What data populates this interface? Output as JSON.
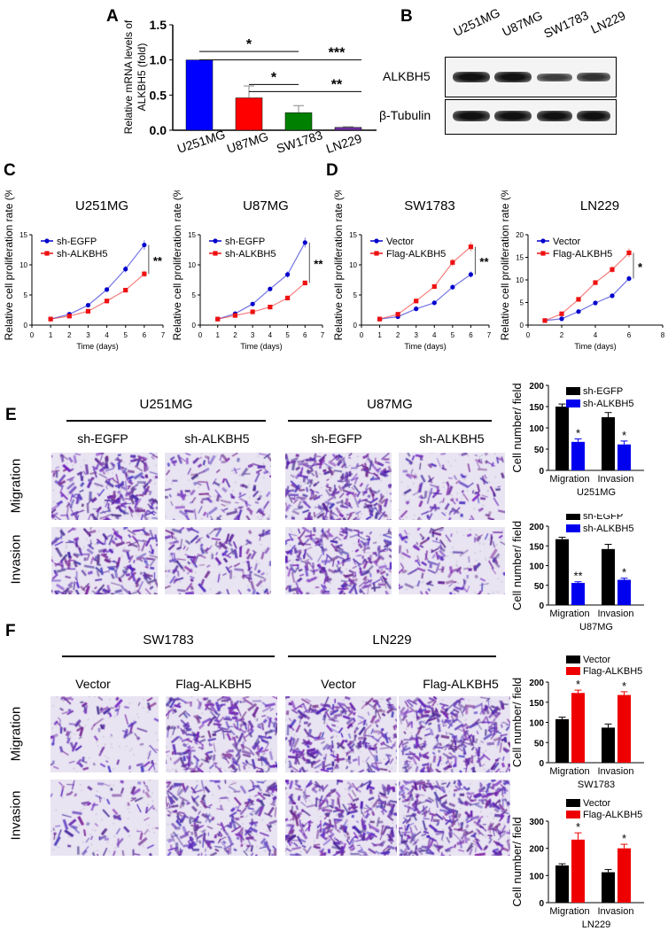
{
  "panels": {
    "A": "A",
    "B": "B",
    "C": "C",
    "D": "D",
    "E": "E",
    "F": "F"
  },
  "blot": {
    "lanes": [
      "U251MG",
      "U87MG",
      "SW1783",
      "LN229"
    ],
    "rows": [
      "ALKBH5",
      "β-Tubulin"
    ],
    "band_intensity": {
      "ALKBH5": [
        1.0,
        1.0,
        0.7,
        0.75
      ],
      "β-Tubulin": [
        1,
        1,
        1,
        1
      ]
    }
  },
  "panel_E": {
    "groups": [
      "U251MG",
      "U87MG"
    ],
    "columns": [
      "sh-EGFP",
      "sh-ALKBH5",
      "sh-EGFP",
      "sh-ALKBH5"
    ],
    "rows": [
      "Migration",
      "Invasion"
    ]
  },
  "panel_F": {
    "groups": [
      "SW1783",
      "LN229"
    ],
    "columns": [
      "Vector",
      "Flag-ALKBH5",
      "Vector",
      "Flag-ALKBH5"
    ],
    "rows": [
      "Migration",
      "Invasion"
    ]
  },
  "chart_data": [
    {
      "id": "A",
      "type": "bar",
      "categories": [
        "U251MG",
        "U87MG",
        "SW1783",
        "LN229"
      ],
      "values": [
        1.0,
        0.46,
        0.25,
        0.04
      ],
      "errors": [
        0,
        0.17,
        0.1,
        0.01
      ],
      "colors": [
        "#0000ff",
        "#ff0000",
        "#008000",
        "#7030a0"
      ],
      "ylabel": "Relative mRNA levels of ALKBH5 (fold)",
      "ylim": [
        0,
        1.5
      ],
      "yticks": [
        "0.0",
        "0.5",
        "1.0",
        "1.5"
      ],
      "significance": [
        {
          "from": "U251MG",
          "to": "SW1783",
          "level": 1.12,
          "label": "*"
        },
        {
          "from": "U251MG",
          "to": "LN229",
          "level": 1.0,
          "label": "***"
        },
        {
          "from": "U87MG",
          "to": "SW1783",
          "level": 0.65,
          "label": "*"
        },
        {
          "from": "U87MG",
          "to": "LN229",
          "level": 0.55,
          "label": "**"
        }
      ]
    },
    {
      "id": "C1",
      "type": "line",
      "title": "U251MG",
      "xlabel": "Time (days)",
      "ylabel": "Relative cell proliferation rate (%)",
      "xlim": [
        0,
        7
      ],
      "xticks": [
        0,
        1,
        2,
        3,
        4,
        5,
        6,
        7
      ],
      "ylim": [
        0,
        15
      ],
      "yticks": [
        0,
        5,
        10,
        15
      ],
      "x": [
        1,
        2,
        3,
        4,
        5,
        6
      ],
      "series": [
        {
          "name": "sh-EGFP",
          "color": "#0000cc",
          "marker": "circle",
          "values": [
            1,
            1.8,
            3.3,
            5.9,
            9.3,
            13.3
          ]
        },
        {
          "name": "sh-ALKBH5",
          "color": "#ee1111",
          "marker": "square",
          "values": [
            1,
            1.5,
            2.3,
            4.0,
            5.8,
            8.5
          ]
        }
      ],
      "significance": "**",
      "legend": "top-left"
    },
    {
      "id": "C2",
      "type": "line",
      "title": "U87MG",
      "xlabel": "Time (days)",
      "ylabel": "Relative cell proliferation rate (%)",
      "xlim": [
        0,
        7
      ],
      "xticks": [
        0,
        1,
        2,
        3,
        4,
        5,
        6,
        7
      ],
      "ylim": [
        0,
        15
      ],
      "yticks": [
        0,
        5,
        10,
        15
      ],
      "x": [
        1,
        2,
        3,
        4,
        5,
        6
      ],
      "series": [
        {
          "name": "sh-EGFP",
          "color": "#0000cc",
          "marker": "circle",
          "values": [
            1,
            1.9,
            3.5,
            6.0,
            8.4,
            13.7
          ]
        },
        {
          "name": "sh-ALKBH5",
          "color": "#ee1111",
          "marker": "square",
          "values": [
            1,
            1.6,
            2.2,
            3.0,
            4.5,
            7.0
          ]
        }
      ],
      "significance": "**",
      "legend": "top-left"
    },
    {
      "id": "D1",
      "type": "line",
      "title": "SW1783",
      "xlabel": "Time (days)",
      "ylabel": "Relative cell proliferation rate (%)",
      "xlim": [
        0,
        7
      ],
      "xticks": [
        0,
        1,
        2,
        3,
        4,
        5,
        6,
        7
      ],
      "ylim": [
        0,
        15
      ],
      "yticks": [
        0,
        5,
        10,
        15
      ],
      "x": [
        1,
        2,
        3,
        4,
        5,
        6
      ],
      "series": [
        {
          "name": "Vector",
          "color": "#0000cc",
          "marker": "circle",
          "values": [
            1,
            1.4,
            2.7,
            3.7,
            6.3,
            8.4
          ]
        },
        {
          "name": "Flag-ALKBH5",
          "color": "#ee1111",
          "marker": "square",
          "values": [
            1,
            1.8,
            4.0,
            6.4,
            10.4,
            13.0
          ]
        }
      ],
      "significance": "**",
      "legend": "top-left"
    },
    {
      "id": "D2",
      "type": "line",
      "title": "LN229",
      "xlabel": "Time (days)",
      "ylabel": "Relative cell proliferation rate (%)",
      "xlim": [
        0,
        8
      ],
      "xticks": [
        0,
        2,
        4,
        6,
        8
      ],
      "ylim": [
        0,
        20
      ],
      "yticks": [
        0,
        5,
        10,
        15,
        20
      ],
      "x": [
        1,
        2,
        3,
        4,
        5,
        6
      ],
      "series": [
        {
          "name": "Vector",
          "color": "#0000cc",
          "marker": "circle",
          "values": [
            1,
            1.4,
            3.0,
            4.9,
            6.5,
            10.3
          ]
        },
        {
          "name": "Flag-ALKBH5",
          "color": "#ee1111",
          "marker": "square",
          "values": [
            1,
            2.5,
            5.7,
            9.4,
            12.3,
            16.0
          ]
        }
      ],
      "significance": "*",
      "legend": "top-left"
    },
    {
      "id": "E1",
      "type": "bar",
      "title": "U251MG",
      "categories": [
        "Migration",
        "Invasion"
      ],
      "ylabel": "Cell number/ field",
      "ylim": [
        0,
        200
      ],
      "yticks": [
        0,
        50,
        100,
        150,
        200
      ],
      "series": [
        {
          "name": "sh-EGFP",
          "color": "#000000",
          "values": [
            150,
            125
          ],
          "errors": [
            6,
            11
          ]
        },
        {
          "name": "sh-ALKBH5",
          "color": "#0000ee",
          "values": [
            67,
            61
          ],
          "errors": [
            7,
            8
          ]
        }
      ],
      "significance": [
        "*",
        "*"
      ]
    },
    {
      "id": "E2",
      "type": "bar",
      "title": "U87MG",
      "categories": [
        "Migration",
        "Invasion"
      ],
      "ylabel": "Cell number/ field",
      "ylim": [
        0,
        200
      ],
      "yticks": [
        0,
        50,
        100,
        150,
        200
      ],
      "series": [
        {
          "name": "sh-EGFP",
          "color": "#000000",
          "values": [
            167,
            142
          ],
          "errors": [
            5,
            12
          ]
        },
        {
          "name": "sh-ALKBH5",
          "color": "#0000ee",
          "values": [
            56,
            64
          ],
          "errors": [
            3,
            4
          ]
        }
      ],
      "significance": [
        "**",
        "*"
      ]
    },
    {
      "id": "F1",
      "type": "bar",
      "title": "SW1783",
      "categories": [
        "Migration",
        "Invasion"
      ],
      "ylabel": "Cell number/ field",
      "ylim": [
        0,
        200
      ],
      "yticks": [
        0,
        50,
        100,
        150,
        200
      ],
      "series": [
        {
          "name": "Vector",
          "color": "#000000",
          "values": [
            108,
            87
          ],
          "errors": [
            5,
            9
          ]
        },
        {
          "name": "Flag-ALKBH5",
          "color": "#ee0000",
          "values": [
            173,
            168
          ],
          "errors": [
            7,
            8
          ]
        }
      ],
      "significance": [
        "*",
        "*"
      ]
    },
    {
      "id": "F2",
      "type": "bar",
      "title": "LN229",
      "categories": [
        "Migration",
        "Invasion"
      ],
      "ylabel": "Cell number/ field",
      "ylim": [
        0,
        300
      ],
      "yticks": [
        0,
        100,
        200,
        300
      ],
      "series": [
        {
          "name": "Vector",
          "color": "#000000",
          "values": [
            137,
            112
          ],
          "errors": [
            6,
            10
          ]
        },
        {
          "name": "Flag-ALKBH5",
          "color": "#ee0000",
          "values": [
            232,
            200
          ],
          "errors": [
            25,
            15
          ]
        }
      ],
      "significance": [
        "*",
        "*"
      ]
    }
  ]
}
